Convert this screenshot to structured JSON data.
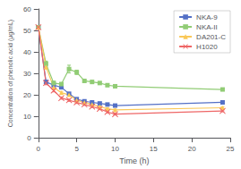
{
  "chart_data": {
    "type": "line",
    "xlabel": "Time (h)",
    "ylabel": "Concentration of phenolic acid (μg/mL)",
    "x": [
      0,
      1,
      2,
      3,
      4,
      5,
      6,
      7,
      8,
      9,
      10,
      24
    ],
    "xlim": [
      0,
      25
    ],
    "xticks": [
      0,
      5,
      10,
      15,
      20,
      25
    ],
    "ylim": [
      0,
      60
    ],
    "yticks": [
      0,
      10,
      20,
      30,
      40,
      50,
      60
    ],
    "grid": false,
    "legend": "upper right",
    "series": [
      {
        "name": "NKA-9",
        "marker": "square",
        "values": [
          51.5,
          26.0,
          24.5,
          23.5,
          20.5,
          18.0,
          17.0,
          16.5,
          16.0,
          15.5,
          15.0,
          16.5
        ],
        "yerr": [
          0.5,
          0.7,
          0.6,
          0.5,
          0.6,
          0.5,
          0.5,
          0.5,
          0.5,
          0.4,
          0.4,
          0.5
        ]
      },
      {
        "name": "NKA-II",
        "marker": "square",
        "values": [
          51.5,
          34.5,
          25.5,
          25.0,
          32.0,
          30.5,
          26.5,
          26.0,
          25.5,
          24.5,
          24.0,
          22.5
        ],
        "yerr": [
          0.5,
          1.2,
          0.8,
          0.7,
          1.8,
          1.0,
          0.7,
          0.7,
          0.6,
          0.6,
          0.6,
          0.5
        ]
      },
      {
        "name": "DA201-C",
        "marker": "triangle",
        "values": [
          51.5,
          33.0,
          23.5,
          21.0,
          20.0,
          17.5,
          16.5,
          15.5,
          14.5,
          13.5,
          13.0,
          14.0
        ],
        "yerr": [
          0.5,
          1.0,
          0.7,
          0.6,
          0.5,
          0.5,
          0.5,
          0.4,
          0.4,
          0.4,
          0.4,
          0.4
        ]
      },
      {
        "name": "H1020",
        "marker": "x",
        "values": [
          51.5,
          25.5,
          22.0,
          18.5,
          17.5,
          16.5,
          15.5,
          14.5,
          13.5,
          12.0,
          11.0,
          12.5
        ],
        "yerr": [
          0.5,
          0.8,
          0.6,
          0.5,
          0.5,
          0.5,
          0.4,
          0.4,
          0.4,
          0.4,
          0.4,
          0.4
        ]
      }
    ]
  }
}
